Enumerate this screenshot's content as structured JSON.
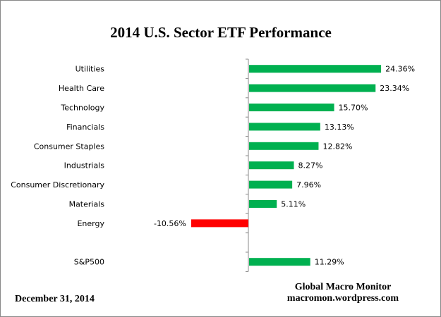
{
  "chart_data": {
    "type": "bar",
    "orientation": "horizontal",
    "title": "2014 U.S. Sector ETF Performance",
    "categories": [
      "Utilities",
      "Health Care",
      "Technology",
      "Financials",
      "Consumer Staples",
      "Industrials",
      "Consumer Discretionary",
      "Materials",
      "Energy",
      "",
      "S&P500"
    ],
    "values": [
      24.36,
      23.34,
      15.7,
      13.13,
      12.82,
      8.27,
      7.96,
      5.11,
      -10.56,
      null,
      11.29
    ],
    "data_labels": [
      "24.36%",
      "23.34%",
      "15.70%",
      "13.13%",
      "12.82%",
      "8.27%",
      "7.96%",
      "5.11%",
      "-10.56%",
      "",
      "11.29%"
    ],
    "xlim": [
      -12,
      27
    ],
    "grid": false,
    "colors": {
      "positive": "#00b050",
      "negative": "#ff0000",
      "axis": "#888888"
    }
  },
  "footer": {
    "date": "December 31,  2014",
    "source_line1": "Global Macro Monitor",
    "source_line2": "macromon.wordpress.com"
  }
}
